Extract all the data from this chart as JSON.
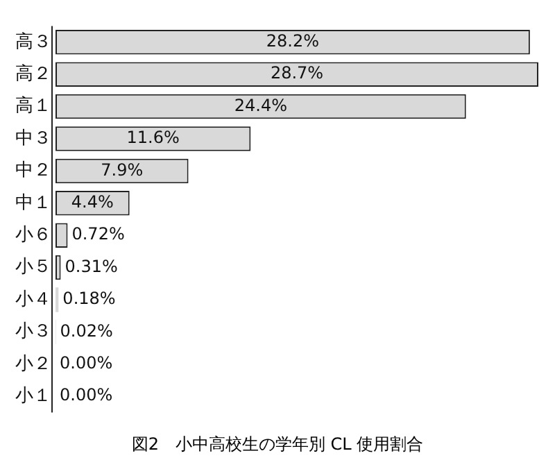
{
  "chart_data": {
    "type": "bar",
    "orientation": "horizontal",
    "title": "図2　小中高校生の学年別 CL 使用割合",
    "categories": [
      "高３",
      "高２",
      "高１",
      "中３",
      "中２",
      "中１",
      "小６",
      "小５",
      "小４",
      "小３",
      "小２",
      "小１"
    ],
    "values": [
      28.2,
      28.7,
      24.4,
      11.6,
      7.9,
      4.4,
      0.72,
      0.31,
      0.18,
      0.02,
      0.0,
      0.0
    ],
    "value_labels": [
      "28.2%",
      "28.7%",
      "24.4%",
      "11.6%",
      "7.9%",
      "4.4%",
      "0.72%",
      "0.31%",
      "0.18%",
      "0.02%",
      "0.00%",
      "0.00%"
    ],
    "color": "#d9d9d9",
    "legend": false
  }
}
